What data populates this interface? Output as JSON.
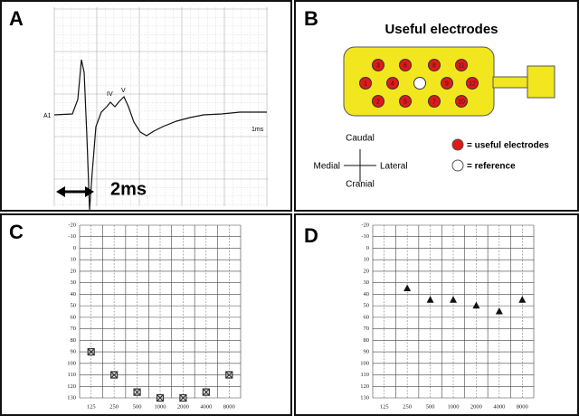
{
  "panel_labels": [
    "A",
    "B",
    "C",
    "D"
  ],
  "waveform": {
    "channel": "A1",
    "peaks": [
      "IV",
      "V"
    ],
    "scale": "1ms",
    "annotation": "2ms"
  },
  "electrode_map": {
    "title": "Useful electrodes",
    "electrodes": [
      "3",
      "6",
      "8",
      "11",
      "1",
      "4",
      "9",
      "12",
      "2",
      "5",
      "7",
      "10"
    ],
    "directions": {
      "top": "Caudal",
      "left": "Medial",
      "right": "Lateral",
      "bottom": "Cranial"
    },
    "legend": [
      "= useful electrodes",
      "= reference"
    ]
  },
  "chart_data": [
    {
      "type": "scatter",
      "marker": "square-x",
      "color": "#333333",
      "invert_y": true,
      "grid": true,
      "categories": [
        "125",
        "250",
        "500",
        "1000",
        "2000",
        "4000",
        "8000"
      ],
      "values": [
        90,
        110,
        125,
        130,
        130,
        125,
        110
      ],
      "ylim": [
        -20,
        130
      ],
      "yticks": [
        -20,
        -10,
        0,
        10,
        20,
        30,
        40,
        50,
        60,
        70,
        80,
        90,
        100,
        110,
        120,
        130
      ]
    },
    {
      "type": "scatter",
      "marker": "triangle",
      "color": "#111111",
      "invert_y": true,
      "grid": true,
      "categories": [
        "125",
        "250",
        "500",
        "1000",
        "2000",
        "4000",
        "8000"
      ],
      "values": [
        null,
        35,
        45,
        45,
        50,
        55,
        45
      ],
      "ylim": [
        -20,
        130
      ],
      "yticks": [
        -20,
        -10,
        0,
        10,
        20,
        30,
        40,
        50,
        60,
        70,
        80,
        90,
        100,
        110,
        120,
        130
      ]
    }
  ]
}
